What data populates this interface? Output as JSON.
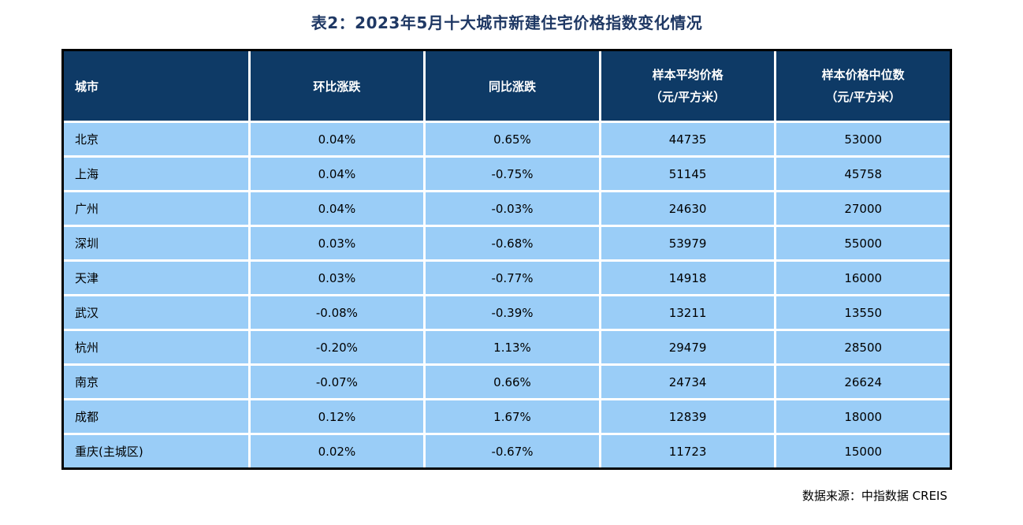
{
  "page": {
    "title": "表2：2023年5月十大城市新建住宅价格指数变化情况",
    "source_note": "数据来源：中指数据 CREIS"
  },
  "colors": {
    "title_text": "#1F3864",
    "header_bg": "#0E3A66",
    "header_text": "#FFFFFF",
    "row_bg": "#9ACDF7",
    "body_text": "#000000",
    "outer_border": "#000000",
    "grid_lines": "#FFFFFF"
  },
  "table": {
    "columns": [
      {
        "label": "城市"
      },
      {
        "label": "环比涨跌"
      },
      {
        "label": "同比涨跌"
      },
      {
        "label": "样本平均价格",
        "sub": "（元/平方米）"
      },
      {
        "label": "样本价格中位数",
        "sub": "（元/平方米）"
      }
    ],
    "rows": [
      {
        "city": "北京",
        "mom": "0.04%",
        "yoy": "0.65%",
        "avg_price": "44735",
        "median_price": "53000"
      },
      {
        "city": "上海",
        "mom": "0.04%",
        "yoy": "-0.75%",
        "avg_price": "51145",
        "median_price": "45758"
      },
      {
        "city": "广州",
        "mom": "0.04%",
        "yoy": "-0.03%",
        "avg_price": "24630",
        "median_price": "27000"
      },
      {
        "city": "深圳",
        "mom": "0.03%",
        "yoy": "-0.68%",
        "avg_price": "53979",
        "median_price": "55000"
      },
      {
        "city": "天津",
        "mom": "0.03%",
        "yoy": "-0.77%",
        "avg_price": "14918",
        "median_price": "16000"
      },
      {
        "city": "武汉",
        "mom": "-0.08%",
        "yoy": "-0.39%",
        "avg_price": "13211",
        "median_price": "13550"
      },
      {
        "city": "杭州",
        "mom": "-0.20%",
        "yoy": "1.13%",
        "avg_price": "29479",
        "median_price": "28500"
      },
      {
        "city": "南京",
        "mom": "-0.07%",
        "yoy": "0.66%",
        "avg_price": "24734",
        "median_price": "26624"
      },
      {
        "city": "成都",
        "mom": "0.12%",
        "yoy": "1.67%",
        "avg_price": "12839",
        "median_price": "18000"
      },
      {
        "city": "重庆(主城区)",
        "mom": "0.02%",
        "yoy": "-0.67%",
        "avg_price": "11723",
        "median_price": "15000"
      }
    ]
  },
  "chart_data": {
    "type": "table",
    "title": "表2：2023年5月十大城市新建住宅价格指数变化情况",
    "columns": [
      "城市",
      "环比涨跌",
      "同比涨跌",
      "样本平均价格（元/平方米）",
      "样本价格中位数（元/平方米）"
    ],
    "rows": [
      [
        "北京",
        "0.04%",
        "0.65%",
        44735,
        53000
      ],
      [
        "上海",
        "0.04%",
        "-0.75%",
        51145,
        45758
      ],
      [
        "广州",
        "0.04%",
        "-0.03%",
        24630,
        27000
      ],
      [
        "深圳",
        "0.03%",
        "-0.68%",
        53979,
        55000
      ],
      [
        "天津",
        "0.03%",
        "-0.77%",
        14918,
        16000
      ],
      [
        "武汉",
        "-0.08%",
        "-0.39%",
        13211,
        13550
      ],
      [
        "杭州",
        "-0.20%",
        "1.13%",
        29479,
        28500
      ],
      [
        "南京",
        "-0.07%",
        "0.66%",
        24734,
        26624
      ],
      [
        "成都",
        "0.12%",
        "1.67%",
        12839,
        18000
      ],
      [
        "重庆(主城区)",
        "0.02%",
        "-0.67%",
        11723,
        15000
      ]
    ],
    "source": "数据来源：中指数据 CREIS"
  }
}
